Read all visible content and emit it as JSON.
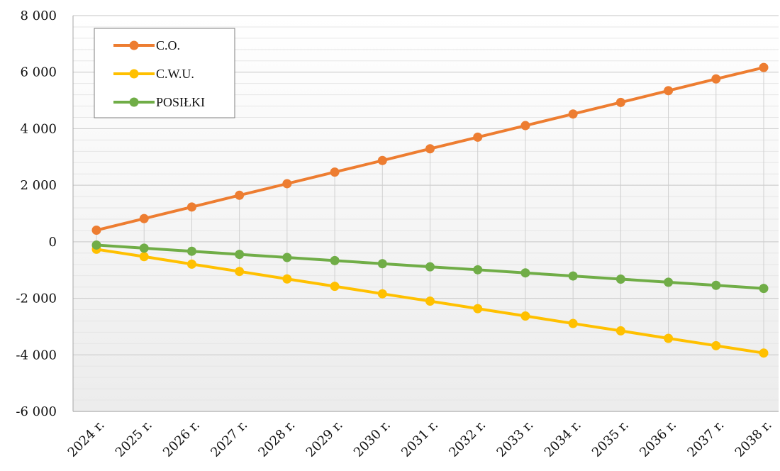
{
  "chart_data": {
    "type": "line",
    "categories": [
      "2024 r.",
      "2025 r.",
      "2026 r.",
      "2027 r.",
      "2028 r.",
      "2029 r.",
      "2030 r.",
      "2031 r.",
      "2032 r.",
      "2033 r.",
      "2034 r.",
      "2035 r.",
      "2036 r.",
      "2037 r.",
      "2038 r."
    ],
    "series": [
      {
        "name": "C.O.",
        "color": "#ED7D31",
        "values": [
          410,
          820,
          1230,
          1645,
          2055,
          2465,
          2875,
          3290,
          3700,
          4110,
          4520,
          4930,
          5345,
          5760,
          6165
        ]
      },
      {
        "name": "C.W.U.",
        "color": "#FFC000",
        "values": [
          -265,
          -525,
          -790,
          -1050,
          -1315,
          -1575,
          -1840,
          -2100,
          -2365,
          -2625,
          -2890,
          -3150,
          -3415,
          -3675,
          -3935
        ]
      },
      {
        "name": "POSIŁKI",
        "color": "#70AD47",
        "values": [
          -115,
          -225,
          -335,
          -445,
          -555,
          -665,
          -775,
          -885,
          -990,
          -1100,
          -1210,
          -1320,
          -1430,
          -1540,
          -1650
        ]
      }
    ],
    "ylim": [
      -6000,
      8000
    ],
    "y_ticks": [
      8000,
      6000,
      4000,
      2000,
      0,
      -2000,
      -4000,
      -6000
    ],
    "y_tick_labels": [
      "8 000",
      "6 000",
      "4 000",
      "2 000",
      "0",
      "-2 000",
      "-4 000",
      "-6 000"
    ],
    "title": "",
    "xlabel": "",
    "ylabel": "",
    "legend_position": "top-left",
    "grid": true
  }
}
